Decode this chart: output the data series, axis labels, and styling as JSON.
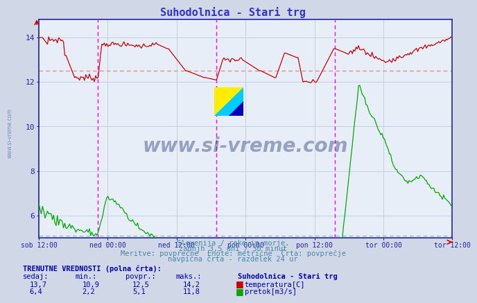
{
  "title": "Suhodolnica - Stari trg",
  "title_color": "#3333cc",
  "bg_color": "#d0d8e8",
  "plot_bg_color": "#e8eef8",
  "grid_color": "#c8d4e4",
  "axis_color": "#2222aa",
  "tick_color": "#2222aa",
  "x_labels": [
    "sob 12:00",
    "ned 00:00",
    "ned 12:00",
    "pon 00:00",
    "pon 12:00",
    "tor 00:00",
    "tor 12:00"
  ],
  "y_ticks": [
    6,
    8,
    10,
    12,
    14
  ],
  "ylim": [
    5.0,
    14.8
  ],
  "n_points": 336,
  "temp_color": "#cc0000",
  "flow_color": "#00aa00",
  "avg_temp_color": "#dd6666",
  "avg_flow_color": "#66bb66",
  "vline_color": "#ff00ff",
  "watermark_text_color": "#1a3070",
  "watermark_alpha": 0.4,
  "footer_color": "#4488aa",
  "label_color": "#0000aa",
  "temp_avg": 12.5,
  "temp_min": 10.9,
  "temp_max": 14.2,
  "temp_current": 13.7,
  "flow_avg": 5.1,
  "flow_min": 2.2,
  "flow_max": 11.8,
  "flow_current": 6.4,
  "footer_line1": "Slovenija / reke in morje.",
  "footer_line2": "zadnjh 3,5 dni / 30 minut",
  "footer_line3": "Meritve: povprečne  Enote: metrične  Črta: povprečje",
  "footer_line4": "navpična črta - razdelek 24 ur",
  "table_header": "TRENUTNE VREDNOSTI (polna črta):",
  "col_headers": [
    "sedaj:",
    "min.:",
    "povpr.:",
    "maks.:"
  ],
  "station_name": "Suhodolnica - Stari trg",
  "legend_temp": "temperatura[C]",
  "legend_flow": "pretok[m3/s]",
  "watermark_label": "www.si-vreme.com"
}
